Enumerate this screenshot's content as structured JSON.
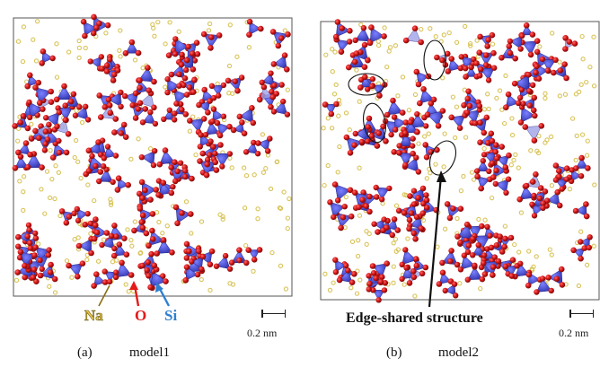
{
  "panels": [
    {
      "id": "a",
      "letter": "(a)",
      "name": "model1"
    },
    {
      "id": "b",
      "letter": "(b)",
      "name": "model2"
    }
  ],
  "legend": {
    "na": {
      "label": "Na",
      "color": "#e8c64a"
    },
    "o": {
      "label": "O",
      "color": "#e41a1a"
    },
    "si": {
      "label": "Si",
      "color": "#2d7fd1"
    }
  },
  "annotation": "Edge-shared structure",
  "scale_label": "0.2 nm",
  "colors": {
    "tetrahedron": "#3b3fc4",
    "oxygen": "#c91818",
    "sodium": "#d9c45a",
    "frame": "#555555"
  }
}
